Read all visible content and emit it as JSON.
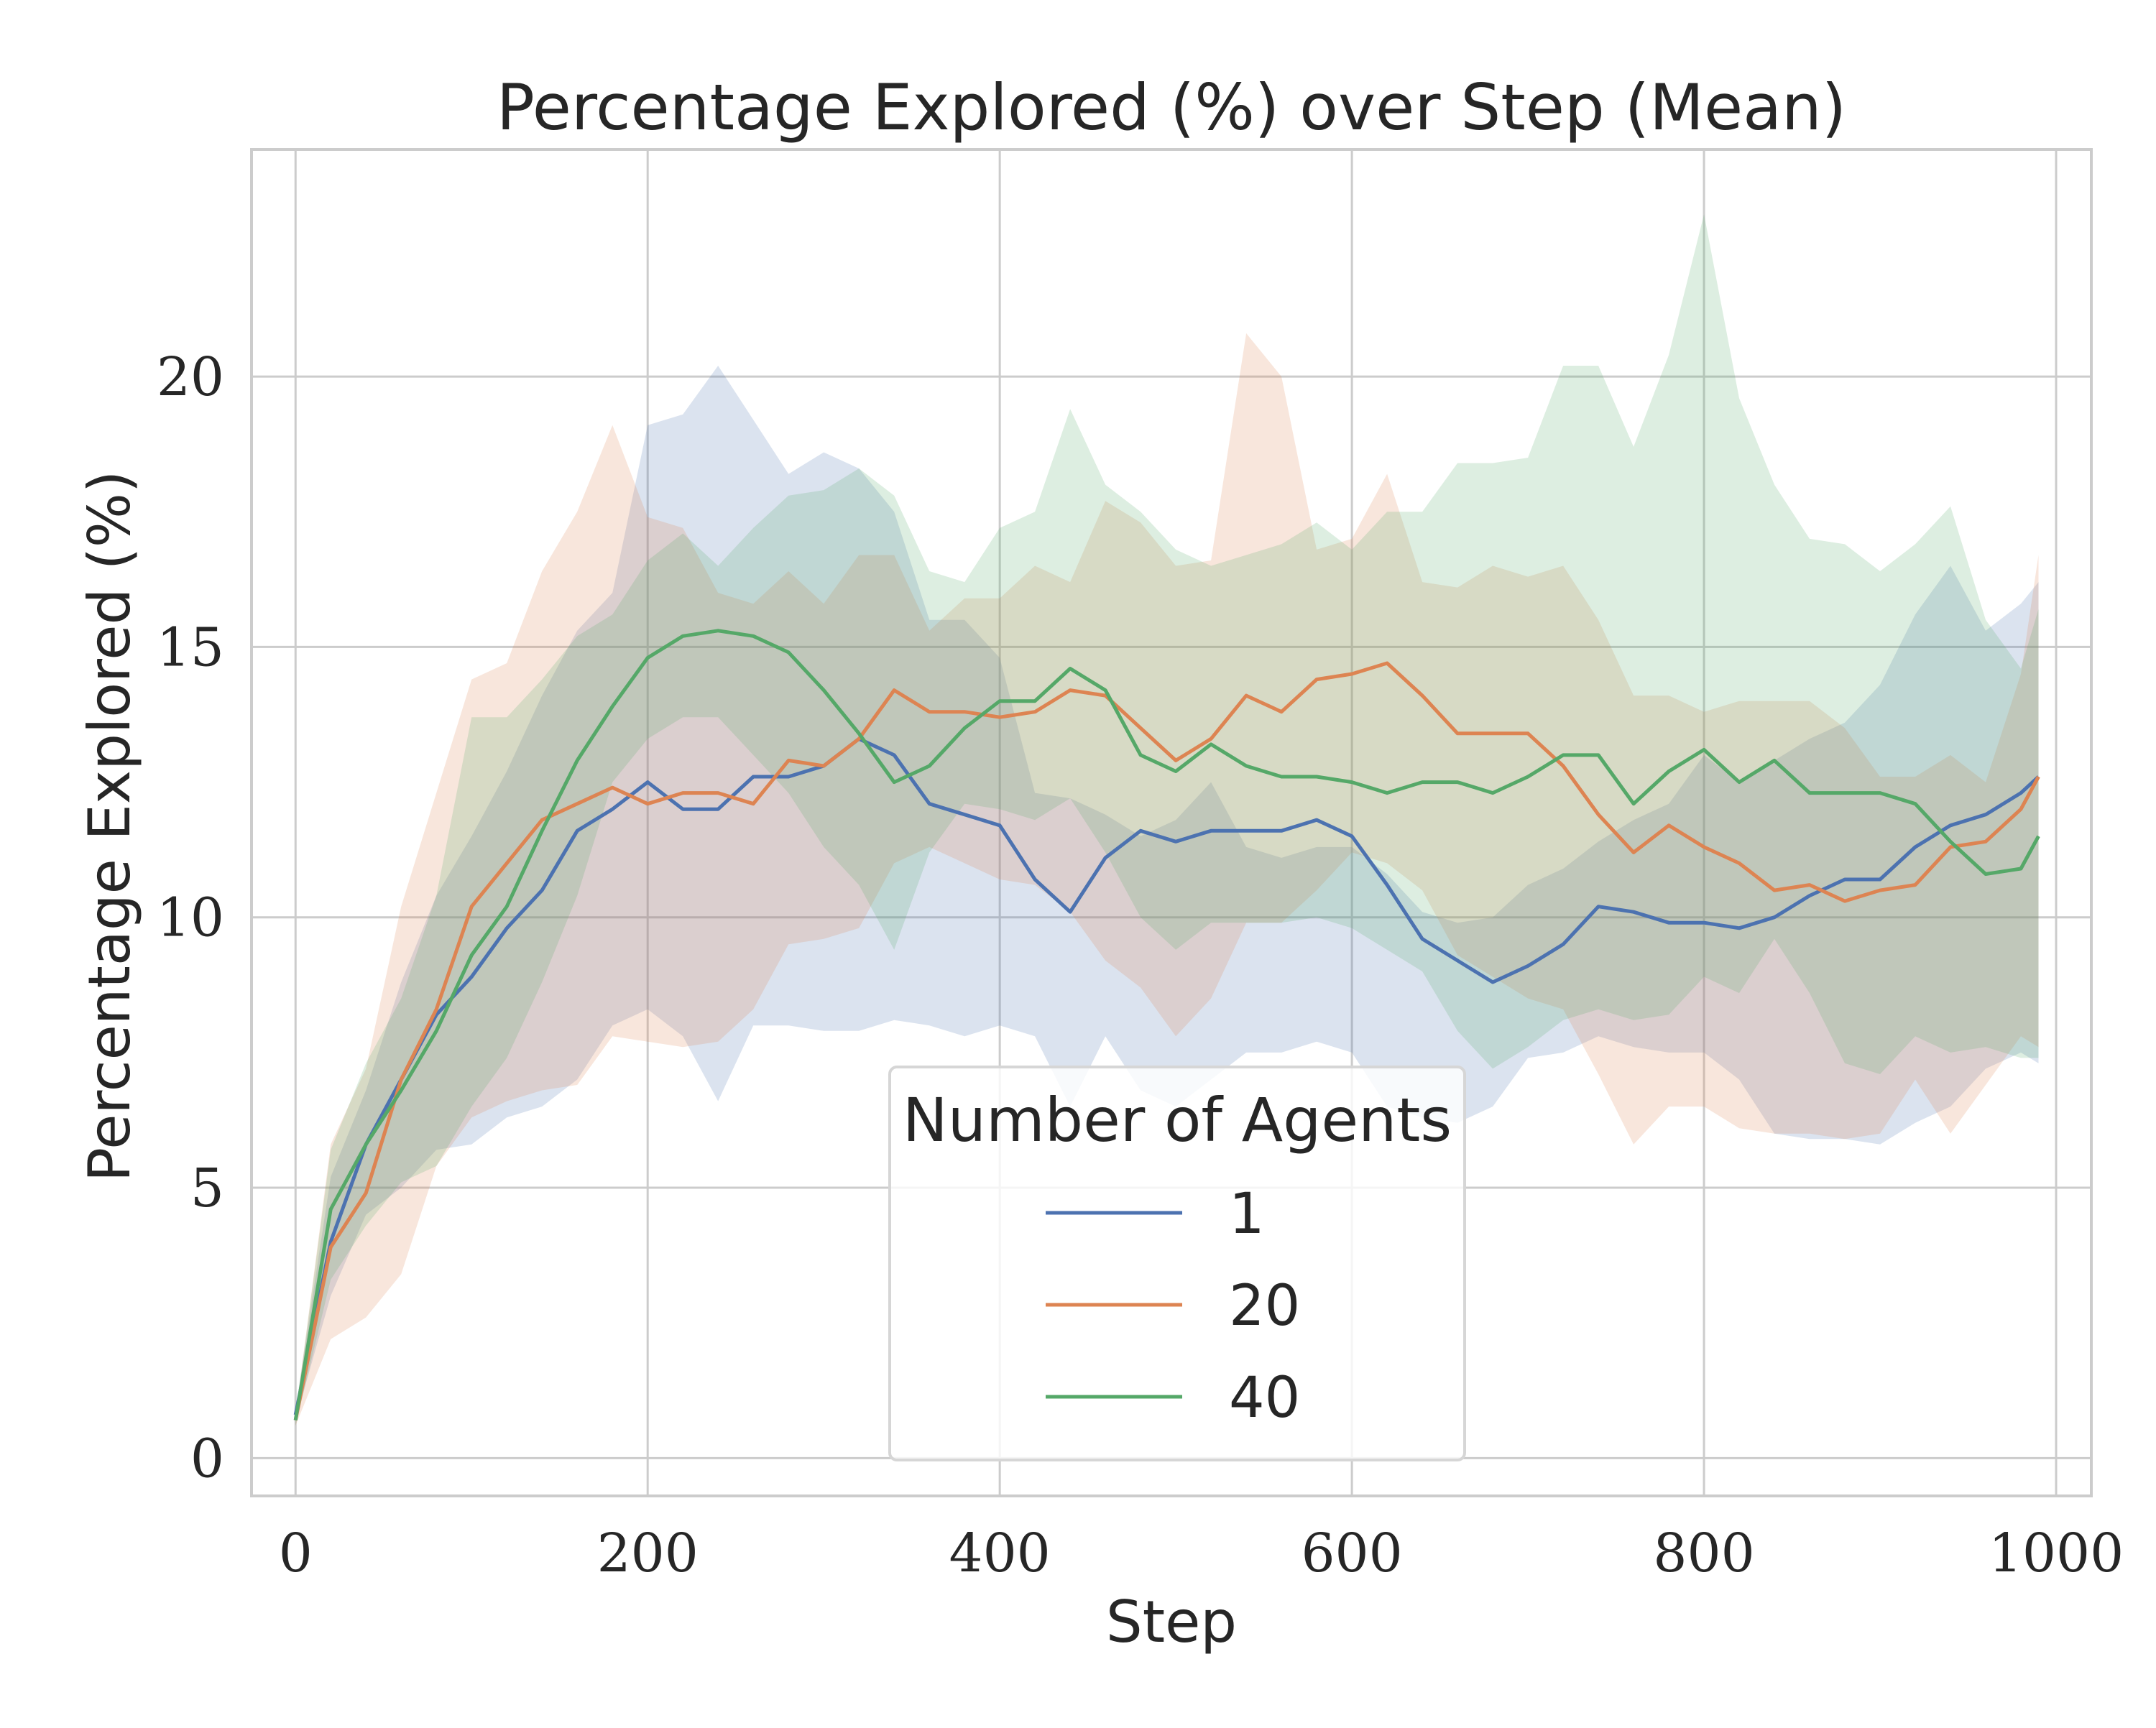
{
  "chart_data": {
    "type": "line",
    "title": "Percentage Explored (%) over Step (Mean)",
    "xlabel": "Step",
    "ylabel": "Percentage Explored (%)",
    "xlim": [
      -25,
      1020
    ],
    "ylim": [
      -0.7,
      24.2
    ],
    "xticks": [
      0,
      200,
      400,
      600,
      800,
      1000
    ],
    "yticks": [
      0,
      5,
      10,
      15,
      20
    ],
    "grid": true,
    "legend": {
      "title": "Number of Agents",
      "placement": "lower-center"
    },
    "x": [
      0,
      20,
      40,
      60,
      80,
      100,
      120,
      140,
      160,
      180,
      200,
      220,
      240,
      260,
      280,
      300,
      320,
      340,
      360,
      380,
      400,
      420,
      440,
      460,
      480,
      500,
      520,
      540,
      560,
      580,
      600,
      620,
      640,
      660,
      680,
      700,
      720,
      740,
      760,
      780,
      800,
      820,
      840,
      860,
      880,
      900,
      920,
      940,
      960,
      980,
      990
    ],
    "series": [
      {
        "name": "1",
        "color": "#4c72b0",
        "values": [
          0.8,
          4.0,
          5.8,
          7.0,
          8.2,
          8.9,
          9.8,
          10.5,
          11.6,
          12.0,
          12.5,
          12.0,
          12.0,
          12.6,
          12.6,
          12.8,
          13.3,
          13.0,
          12.1,
          11.9,
          11.7,
          10.7,
          10.1,
          11.1,
          11.6,
          11.4,
          11.6,
          11.6,
          11.6,
          11.8,
          11.5,
          10.6,
          9.6,
          9.2,
          8.8,
          9.1,
          9.5,
          10.2,
          10.1,
          9.9,
          9.9,
          9.8,
          10.0,
          10.4,
          10.7,
          10.7,
          11.3,
          11.7,
          11.9,
          12.3,
          12.6
        ],
        "lower": [
          0.7,
          3.0,
          4.5,
          5.0,
          5.7,
          5.8,
          6.3,
          6.5,
          7.0,
          8.0,
          8.3,
          7.8,
          6.6,
          8.0,
          8.0,
          7.9,
          7.9,
          8.1,
          8.0,
          7.8,
          8.0,
          7.8,
          6.5,
          7.8,
          6.8,
          6.5,
          7.0,
          7.5,
          7.5,
          7.7,
          7.5,
          6.5,
          6.3,
          6.2,
          6.5,
          7.4,
          7.5,
          7.8,
          7.6,
          7.5,
          7.5,
          7.0,
          6.0,
          5.9,
          5.9,
          5.8,
          6.2,
          6.5,
          7.2,
          7.5,
          7.3
        ],
        "upper": [
          0.9,
          5.2,
          6.8,
          8.8,
          10.4,
          11.5,
          12.7,
          14.1,
          15.3,
          16.0,
          19.1,
          19.3,
          20.2,
          19.2,
          18.2,
          18.6,
          18.3,
          17.5,
          15.5,
          15.5,
          14.8,
          12.3,
          12.2,
          11.9,
          11.5,
          11.8,
          12.5,
          11.3,
          11.1,
          11.3,
          11.3,
          10.8,
          10.1,
          9.9,
          10.0,
          10.6,
          10.9,
          11.4,
          11.8,
          12.1,
          13.0,
          12.5,
          12.9,
          13.3,
          13.6,
          14.3,
          15.6,
          16.5,
          15.3,
          15.8,
          16.2
        ]
      },
      {
        "name": "20",
        "color": "#dd8452",
        "values": [
          0.7,
          3.9,
          4.9,
          7.0,
          8.3,
          10.2,
          11.0,
          11.8,
          12.1,
          12.4,
          12.1,
          12.3,
          12.3,
          12.1,
          12.9,
          12.8,
          13.3,
          14.2,
          13.8,
          13.8,
          13.7,
          13.8,
          14.2,
          14.1,
          13.5,
          12.9,
          13.3,
          14.1,
          13.8,
          14.4,
          14.5,
          14.7,
          14.1,
          13.4,
          13.4,
          13.4,
          12.8,
          11.9,
          11.2,
          11.7,
          11.3,
          11.0,
          10.5,
          10.6,
          10.3,
          10.5,
          10.6,
          11.3,
          11.4,
          12.0,
          12.6
        ],
        "lower": [
          0.6,
          2.2,
          2.6,
          3.4,
          5.4,
          6.3,
          6.6,
          6.8,
          6.9,
          7.8,
          7.7,
          7.6,
          7.7,
          8.3,
          9.5,
          9.6,
          9.8,
          11.0,
          11.3,
          11.0,
          10.7,
          10.6,
          10.1,
          9.2,
          8.7,
          7.8,
          8.5,
          9.9,
          9.9,
          10.5,
          11.2,
          11.0,
          10.5,
          9.3,
          8.9,
          8.5,
          8.3,
          7.1,
          5.8,
          6.5,
          6.5,
          6.1,
          6.0,
          6.0,
          5.9,
          6.0,
          7.0,
          6.0,
          6.9,
          7.8,
          7.6
        ],
        "upper": [
          0.8,
          5.8,
          7.2,
          10.2,
          12.3,
          14.4,
          14.7,
          16.4,
          17.5,
          19.1,
          17.4,
          17.2,
          16.0,
          15.8,
          16.4,
          15.8,
          16.7,
          16.7,
          15.3,
          15.9,
          15.9,
          16.5,
          16.2,
          17.7,
          17.3,
          16.5,
          16.6,
          20.8,
          20.0,
          16.8,
          17.0,
          18.2,
          16.2,
          16.1,
          16.5,
          16.3,
          16.5,
          15.5,
          14.1,
          14.1,
          13.8,
          14.0,
          14.0,
          14.0,
          13.5,
          12.6,
          12.6,
          13.0,
          12.5,
          14.5,
          16.7
        ]
      },
      {
        "name": "40",
        "color": "#55a868",
        "values": [
          0.7,
          4.6,
          5.8,
          6.8,
          7.9,
          9.3,
          10.2,
          11.6,
          12.9,
          13.9,
          14.8,
          15.2,
          15.3,
          15.2,
          14.9,
          14.2,
          13.4,
          12.5,
          12.8,
          13.5,
          14.0,
          14.0,
          14.6,
          14.2,
          13.0,
          12.7,
          13.2,
          12.8,
          12.6,
          12.6,
          12.5,
          12.3,
          12.5,
          12.5,
          12.3,
          12.6,
          13.0,
          13.0,
          12.1,
          12.7,
          13.1,
          12.5,
          12.9,
          12.3,
          12.3,
          12.3,
          12.1,
          11.4,
          10.8,
          10.9,
          11.5
        ],
        "lower": [
          0.6,
          3.3,
          4.3,
          5.1,
          5.4,
          6.5,
          7.4,
          8.8,
          10.4,
          12.5,
          13.3,
          13.7,
          13.7,
          13.0,
          12.3,
          11.3,
          10.6,
          9.4,
          11.2,
          12.1,
          12.0,
          11.8,
          12.2,
          11.2,
          10.0,
          9.4,
          9.9,
          9.9,
          9.9,
          10.0,
          9.8,
          9.4,
          9.0,
          7.9,
          7.2,
          7.6,
          8.1,
          8.3,
          8.1,
          8.2,
          8.9,
          8.6,
          9.6,
          8.6,
          7.3,
          7.1,
          7.8,
          7.5,
          7.6,
          7.4,
          7.4
        ],
        "upper": [
          0.8,
          5.7,
          7.3,
          8.5,
          10.4,
          13.7,
          13.7,
          14.4,
          15.2,
          15.6,
          16.6,
          17.1,
          16.5,
          17.2,
          17.8,
          17.9,
          18.3,
          17.8,
          16.4,
          16.2,
          17.2,
          17.5,
          19.4,
          18.0,
          17.5,
          16.8,
          16.5,
          16.7,
          16.9,
          17.3,
          16.8,
          17.5,
          17.5,
          18.4,
          18.4,
          18.5,
          20.2,
          20.2,
          18.7,
          20.4,
          23.0,
          19.6,
          18.0,
          17.0,
          16.9,
          16.4,
          16.9,
          17.6,
          15.5,
          14.6,
          15.7
        ]
      }
    ]
  }
}
